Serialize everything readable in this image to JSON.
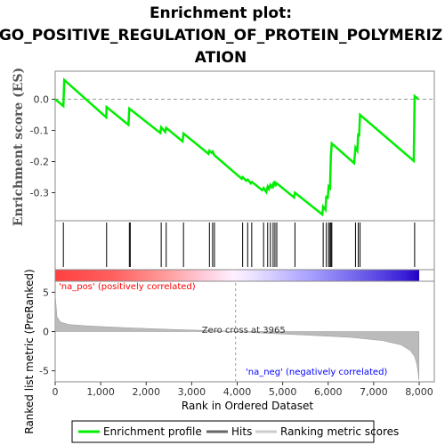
{
  "chart_data": {
    "type": "line",
    "title_lines": [
      "Enrichment plot:",
      "GO_POSITIVE_REGULATION_OF_PROTEIN_POLYMERIZ",
      "ATION"
    ],
    "es_panel": {
      "ylabel": "Enrichment score (ES)",
      "ylim": [
        -0.39,
        0.09
      ],
      "yticks": [
        0.0,
        -0.1,
        -0.2,
        -0.3
      ],
      "ytick_labels": [
        "0.0",
        "-0.1",
        "-0.2",
        "-0.3"
      ],
      "x": [
        0,
        180,
        200,
        1120,
        1130,
        1610,
        1630,
        2310,
        2330,
        2420,
        2440,
        2800,
        2820,
        3370,
        3390,
        3440,
        3460,
        3500,
        4100,
        4120,
        4200,
        4230,
        4300,
        4320,
        4550,
        4580,
        4640,
        4670,
        4700,
        4730,
        4760,
        4790,
        4800,
        4830,
        4850,
        4870,
        5250,
        5270,
        5870,
        5890,
        5940,
        5960,
        5990,
        6010,
        6040,
        6060,
        6080,
        6570,
        6600,
        6640,
        6660,
        6680,
        6700,
        7880,
        7900,
        7980
      ],
      "es": [
        0.0,
        -0.022,
        0.062,
        -0.058,
        -0.025,
        -0.082,
        -0.03,
        -0.108,
        -0.09,
        -0.105,
        -0.092,
        -0.135,
        -0.11,
        -0.175,
        -0.165,
        -0.172,
        -0.168,
        -0.18,
        -0.255,
        -0.25,
        -0.262,
        -0.258,
        -0.27,
        -0.265,
        -0.292,
        -0.285,
        -0.298,
        -0.28,
        -0.288,
        -0.275,
        -0.282,
        -0.272,
        -0.278,
        -0.268,
        -0.275,
        -0.27,
        -0.315,
        -0.3,
        -0.37,
        -0.345,
        -0.355,
        -0.31,
        -0.32,
        -0.28,
        -0.285,
        -0.18,
        -0.142,
        -0.205,
        -0.155,
        -0.165,
        -0.11,
        -0.12,
        -0.05,
        -0.198,
        0.01,
        0.0
      ]
    },
    "hits": [
      180,
      1130,
      1630,
      1650,
      2330,
      2440,
      2820,
      3390,
      3460,
      3500,
      4120,
      4230,
      4320,
      4580,
      4670,
      4730,
      4790,
      4830,
      4870,
      5270,
      5890,
      5960,
      6010,
      6040,
      6060,
      6080,
      6600,
      6660,
      6700,
      7900
    ],
    "rank_panel": {
      "ylabel": "Ranked list metric (PreRanked)",
      "ylim": [
        -6.4,
        6.4
      ],
      "yticks": [
        5,
        0,
        -5
      ],
      "ytick_labels": [
        "5",
        "0",
        "-5"
      ],
      "x": [
        0,
        40,
        120,
        300,
        700,
        1500,
        2500,
        3500,
        3965,
        4500,
        5500,
        6500,
        7200,
        7600,
        7800,
        7900,
        7950,
        7985,
        7995
      ],
      "values": [
        4.8,
        1.9,
        1.2,
        0.9,
        0.72,
        0.5,
        0.28,
        0.1,
        0.0,
        -0.18,
        -0.45,
        -0.75,
        -1.15,
        -1.7,
        -2.4,
        -3.2,
        -4.2,
        -5.6,
        -6.2
      ]
    },
    "xlabel": "Rank in Ordered Dataset",
    "xlim": [
      0,
      8000
    ],
    "xticks": [
      0,
      1000,
      2000,
      3000,
      4000,
      5000,
      6000,
      7000,
      8000
    ],
    "xtick_labels": [
      "0",
      "1,000",
      "2,000",
      "3,000",
      "4,000",
      "5,000",
      "6,000",
      "7,000",
      "8,000"
    ],
    "zero_cross": 3965,
    "zero_cross_label": "Zero cross at 3965",
    "pos_label": "'na_pos' (positively correlated)",
    "neg_label": "'na_neg' (negatively correlated)",
    "legend": [
      {
        "label": "Enrichment profile",
        "color": "#00ee00"
      },
      {
        "label": "Hits",
        "color": "#333333"
      },
      {
        "label": "Ranking metric scores",
        "color": "#bbbbbb"
      }
    ],
    "colors": {
      "es_line": "#00ee00",
      "hit": "#000000",
      "rank_fill": "#bbbbbb",
      "pos_label": "#ff0000",
      "neg_label": "#0000ff"
    }
  }
}
